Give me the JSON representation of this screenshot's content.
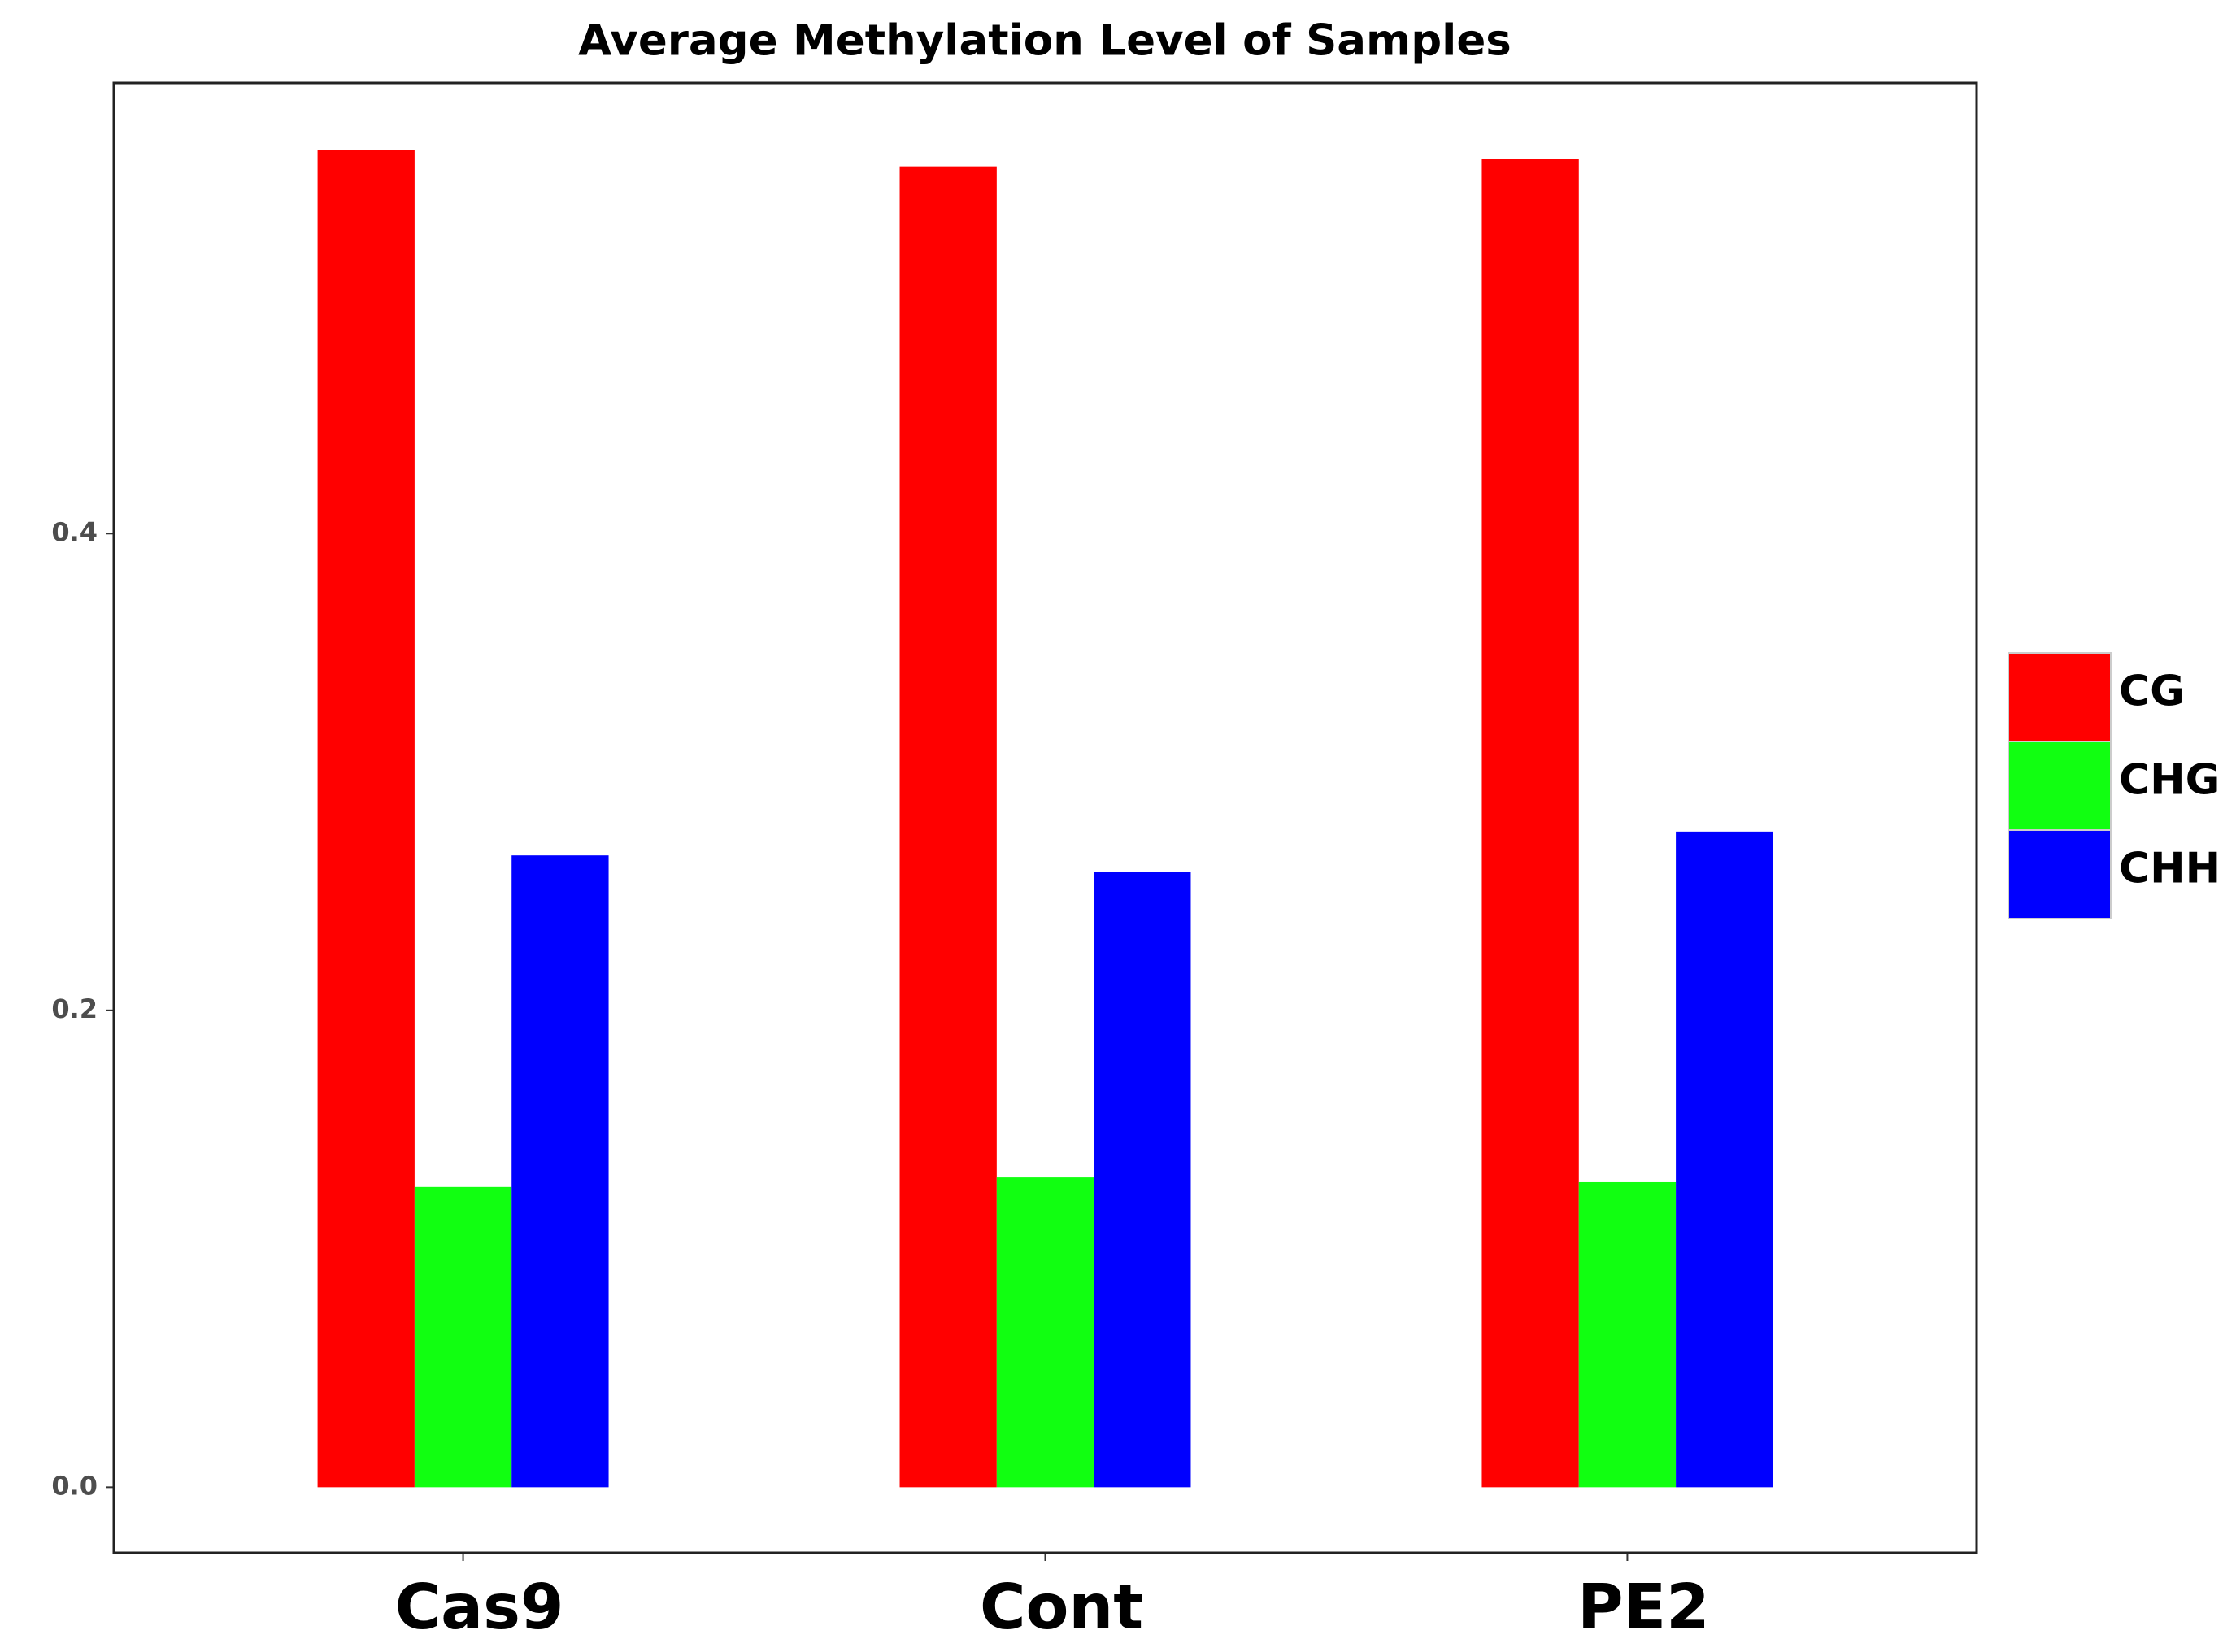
{
  "chart_data": {
    "type": "bar",
    "title": "Average Methylation Level of Samples",
    "categories": [
      "Cas9",
      "Cont",
      "PE2"
    ],
    "series": [
      {
        "name": "CG",
        "color": "#ff0000",
        "values": [
          0.561,
          0.554,
          0.557
        ]
      },
      {
        "name": "CHG",
        "color": "#11ff11",
        "values": [
          0.126,
          0.13,
          0.128
        ]
      },
      {
        "name": "CHH",
        "color": "#0000ff",
        "values": [
          0.265,
          0.258,
          0.275
        ]
      }
    ],
    "ylim": [
      -0.0275,
      0.589
    ],
    "yticks": [
      {
        "value": 0,
        "label": "0.0"
      },
      0.2,
      0.4
    ],
    "grid": false,
    "legend": "right"
  }
}
